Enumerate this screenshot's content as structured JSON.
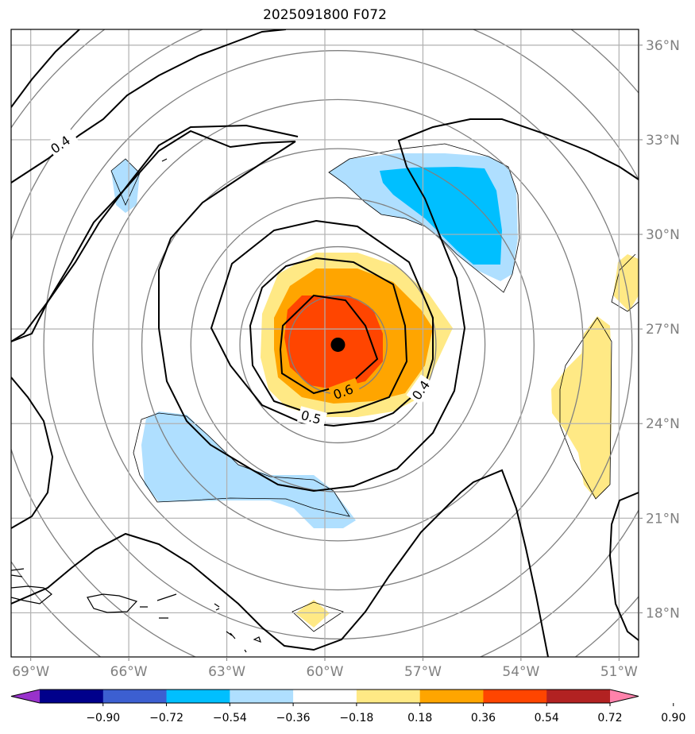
{
  "title": "2025091800 F072",
  "map": {
    "lon_range": [
      -69.6,
      -50.4
    ],
    "lat_range": [
      16.6,
      36.5
    ],
    "lon_ticks": [
      "69°W",
      "66°W",
      "63°W",
      "60°W",
      "57°W",
      "54°W",
      "51°W"
    ],
    "lat_ticks": [
      "36°N",
      "33°N",
      "30°N",
      "27°N",
      "24°N",
      "21°N",
      "18°N"
    ],
    "storm_center": {
      "lon": -59.6,
      "lat": 26.5
    },
    "range_ring_spacing_deg": 1.5,
    "contour_labels": [
      "0.4",
      "0.4",
      "0.5",
      "0.6"
    ],
    "contour_levels": [
      0.4,
      0.5,
      0.6
    ]
  },
  "colorbar": {
    "ticks": [
      "−0.90",
      "−0.72",
      "−0.54",
      "−0.36",
      "−0.18",
      "0.18",
      "0.36",
      "0.54",
      "0.72",
      "0.90"
    ],
    "colors": [
      "#9932cc",
      "#00008b",
      "#3c5fd1",
      "#00bfff",
      "#afdfff",
      "#ffffff",
      "#ffe985",
      "#ffa500",
      "#ff4500",
      "#b22222",
      "#ff82ab"
    ]
  },
  "fill_colors": {
    "neg_light": "#afdfff",
    "neg_mid": "#00bfff",
    "pos_light": "#ffe985",
    "pos_mid": "#ffa500",
    "pos_strong": "#ff4500"
  }
}
